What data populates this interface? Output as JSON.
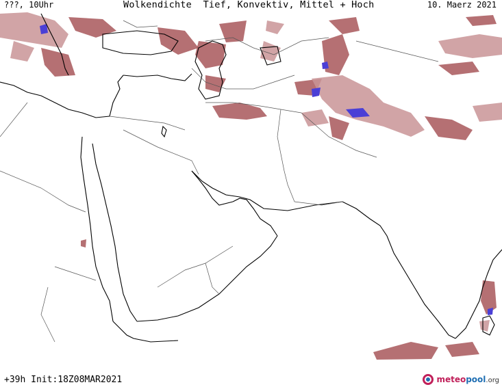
{
  "header": {
    "left_label": "???, 10Uhr",
    "title": "Wolkendichte  Tief, Konvektiv, Mittel + Hoch",
    "date": "10. Maerz 2021"
  },
  "footer": {
    "run_info": "+39h Init:18Z08MAR2021",
    "logo": {
      "part1": "meteo",
      "part2": "pool",
      "part3": ".org"
    }
  },
  "colors": {
    "cloud": "#a8575a",
    "cloud_light": "#c99496",
    "cloud_dense": "#4a3fd6",
    "coast": "#000000",
    "border": "#555555",
    "logo_red": "#c0205a",
    "logo_blue": "#1f6fb3"
  },
  "icons": {
    "logo_mark": "meteopool-logo-icon"
  }
}
